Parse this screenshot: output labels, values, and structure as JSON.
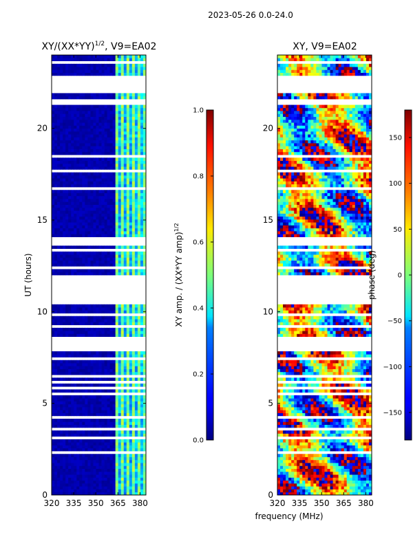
{
  "chart_data": [
    {
      "type": "heatmap",
      "title": "XY/(XX*YY)",
      "title_sup": "1/2",
      "title_suffix": ", V9=EA02",
      "ylabel": "UT (hours)",
      "xlim": [
        320,
        384
      ],
      "ylim": [
        0,
        24
      ],
      "xticks": [
        320,
        335,
        350,
        365,
        380
      ],
      "yticks": [
        0,
        5,
        10,
        15,
        20
      ],
      "colormap": "jet",
      "colorbar": {
        "label": "XY amp. / (XX*YY amp)",
        "label_sup": "1/2",
        "range": [
          0.0,
          1.0
        ],
        "ticks": [
          "0.0",
          "0.2",
          "0.4",
          "0.6",
          "0.8",
          "1.0"
        ]
      },
      "bright_band_mhz": [
        363,
        384
      ],
      "blank_hours": [
        [
          10.35,
          12.05
        ],
        [
          13.6,
          14.05
        ],
        [
          8.05,
          8.45
        ],
        [
          6.1,
          6.3
        ]
      ]
    },
    {
      "type": "heatmap",
      "title": "XY, V9=EA02",
      "xlabel": "frequency (MHz)",
      "xlim": [
        320,
        384
      ],
      "ylim": [
        0,
        24
      ],
      "xticks": [
        320,
        335,
        350,
        365,
        380
      ],
      "yticks": [
        0,
        5,
        10,
        15,
        20
      ],
      "colormap": "jet",
      "colorbar": {
        "label": "phase (deg)",
        "range": [
          -180,
          180
        ],
        "ticks": [
          "-150",
          "-100",
          "-50",
          "0",
          "50",
          "100",
          "150"
        ]
      }
    }
  ],
  "suptitle": "2023-05-26 0.0-24.0",
  "colors": {
    "background": "#ffffff",
    "jet_low": "#00007f",
    "jet_high": "#7f0000"
  }
}
